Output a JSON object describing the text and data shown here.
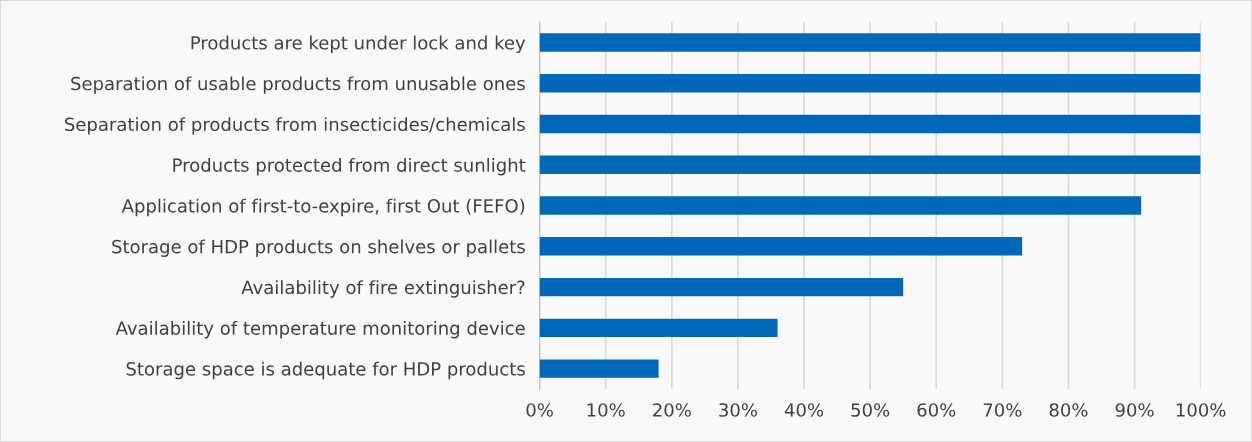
{
  "chart_data": {
    "type": "bar",
    "orientation": "horizontal",
    "categories": [
      "Products are kept under lock and key",
      "Separation of usable products from unusable ones",
      "Separation of products from insecticides/chemicals",
      "Products protected from direct sunlight",
      "Application of first-to-expire, first Out (FEFO)",
      "Storage of HDP products on shelves or pallets",
      "Availability of fire extinguisher?",
      "Availability of temperature monitoring device",
      "Storage space is adequate for HDP products"
    ],
    "values": [
      100,
      100,
      100,
      100,
      91,
      73,
      55,
      36,
      18
    ],
    "color": "#0068b8",
    "xlim": [
      0,
      100
    ],
    "xticks": [
      {
        "value": 0,
        "label": "0%"
      },
      {
        "value": 10,
        "label": "10%"
      },
      {
        "value": 20,
        "label": "20%"
      },
      {
        "value": 30,
        "label": "30%"
      },
      {
        "value": 40,
        "label": "40%"
      },
      {
        "value": 50,
        "label": "50%"
      },
      {
        "value": 60,
        "label": "60%"
      },
      {
        "value": 70,
        "label": "70%"
      },
      {
        "value": 80,
        "label": "80%"
      },
      {
        "value": 90,
        "label": "90%"
      },
      {
        "value": 100,
        "label": "100%"
      }
    ],
    "grid": "x",
    "legend": false
  }
}
